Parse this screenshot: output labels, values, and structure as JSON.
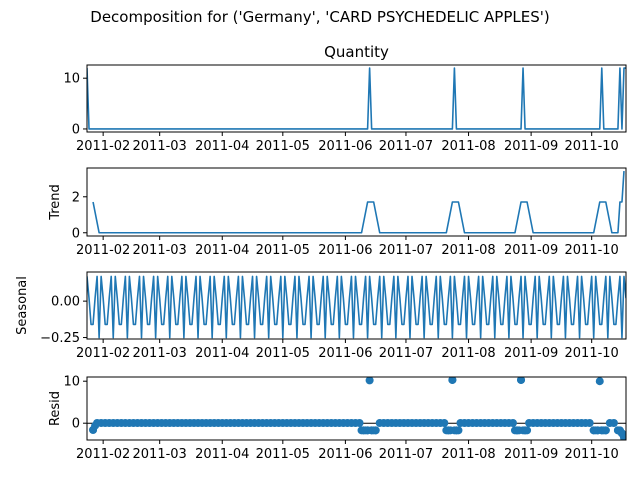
{
  "figure": {
    "suptitle": "Decomposition for ('Germany', 'CARD PSYCHEDELIC APPLES')"
  },
  "colors": {
    "series": "#1f77b4",
    "axis": "#000000",
    "background": "#ffffff"
  },
  "chart_data": [
    {
      "type": "line",
      "title": "Quantity",
      "ylabel": "",
      "ylim": [
        -0.6,
        12.6
      ],
      "yticks": [
        0,
        10
      ],
      "xlim": [
        "2011-01-24",
        "2011-10-18"
      ],
      "xticks": [
        "2011-02",
        "2011-03",
        "2011-04",
        "2011-05",
        "2011-06",
        "2011-07",
        "2011-08",
        "2011-09",
        "2011-10"
      ],
      "x": [
        "2011-01-24",
        "2011-01-25",
        "2011-06-12",
        "2011-06-13",
        "2011-06-14",
        "2011-07-24",
        "2011-07-25",
        "2011-07-26",
        "2011-08-27",
        "2011-08-28",
        "2011-08-29",
        "2011-10-05",
        "2011-10-06",
        "2011-10-07",
        "2011-10-14",
        "2011-10-15",
        "2011-10-16",
        "2011-10-17",
        "2011-10-18"
      ],
      "values": [
        12,
        0,
        0,
        12,
        0,
        0,
        12,
        0,
        0,
        12,
        0,
        0,
        12,
        0,
        0,
        12,
        0,
        12,
        12
      ]
    },
    {
      "type": "line",
      "title": "",
      "ylabel": "Trend",
      "ylim": [
        -0.18,
        3.6
      ],
      "yticks": [
        0,
        2
      ],
      "xlim": [
        "2011-01-24",
        "2011-10-18"
      ],
      "xticks": [
        "2011-02",
        "2011-03",
        "2011-04",
        "2011-05",
        "2011-06",
        "2011-07",
        "2011-08",
        "2011-09",
        "2011-10"
      ],
      "x": [
        "2011-01-27",
        "2011-01-30",
        "2011-06-09",
        "2011-06-12",
        "2011-06-15",
        "2011-06-18",
        "2011-07-21",
        "2011-07-24",
        "2011-07-27",
        "2011-07-30",
        "2011-08-24",
        "2011-08-27",
        "2011-08-30",
        "2011-09-02",
        "2011-10-02",
        "2011-10-05",
        "2011-10-08",
        "2011-10-11",
        "2011-10-14",
        "2011-10-15",
        "2011-10-16",
        "2011-10-17"
      ],
      "values": [
        1.71,
        0,
        0,
        1.71,
        1.71,
        0,
        0,
        1.71,
        1.71,
        0,
        0,
        1.71,
        1.71,
        0,
        0,
        1.71,
        1.71,
        0,
        0,
        1.71,
        1.71,
        3.43
      ]
    },
    {
      "type": "line",
      "title": "",
      "ylabel": "Seasonal",
      "ylim": [
        -0.26,
        0.2
      ],
      "yticks": [
        -0.25,
        0.0
      ],
      "yticklabels": [
        "−0.25",
        "0.00"
      ],
      "xlim": [
        "2011-01-24",
        "2011-10-18"
      ],
      "xticks": [
        "2011-02",
        "2011-03",
        "2011-04",
        "2011-05",
        "2011-06",
        "2011-07",
        "2011-08",
        "2011-09",
        "2011-10"
      ],
      "period_days": 7,
      "pattern": [
        0.17,
        0.02,
        -0.16,
        -0.16,
        0.02,
        0.17,
        -0.25
      ],
      "x_start": "2011-01-24",
      "x_end": "2011-10-18"
    },
    {
      "type": "scatter",
      "title": "",
      "ylabel": "Resid",
      "ylim": [
        -4.0,
        11.0
      ],
      "yticks": [
        0,
        10
      ],
      "baseline": 0,
      "xlim": [
        "2011-01-24",
        "2011-10-18"
      ],
      "xticks": [
        "2011-02",
        "2011-03",
        "2011-04",
        "2011-05",
        "2011-06",
        "2011-07",
        "2011-08",
        "2011-09",
        "2011-10"
      ],
      "default_value": 0.05,
      "x_start": "2011-01-27",
      "x_end": "2011-10-18",
      "special": [
        {
          "x": "2011-01-27",
          "y": -1.6
        },
        {
          "x": "2011-01-28",
          "y": -0.6
        },
        {
          "x": "2011-06-09",
          "y": -1.7
        },
        {
          "x": "2011-06-10",
          "y": -1.7
        },
        {
          "x": "2011-06-11",
          "y": -1.7
        },
        {
          "x": "2011-06-12",
          "y": -1.7
        },
        {
          "x": "2011-06-13",
          "y": 10.2
        },
        {
          "x": "2011-06-14",
          "y": -1.7
        },
        {
          "x": "2011-06-15",
          "y": -1.7
        },
        {
          "x": "2011-06-16",
          "y": -1.7
        },
        {
          "x": "2011-07-21",
          "y": -1.7
        },
        {
          "x": "2011-07-22",
          "y": -1.7
        },
        {
          "x": "2011-07-23",
          "y": -1.7
        },
        {
          "x": "2011-07-24",
          "y": 10.3
        },
        {
          "x": "2011-07-25",
          "y": -1.7
        },
        {
          "x": "2011-07-26",
          "y": -1.7
        },
        {
          "x": "2011-07-27",
          "y": -1.7
        },
        {
          "x": "2011-08-24",
          "y": -1.7
        },
        {
          "x": "2011-08-25",
          "y": -1.7
        },
        {
          "x": "2011-08-26",
          "y": -1.7
        },
        {
          "x": "2011-08-27",
          "y": 10.3
        },
        {
          "x": "2011-08-28",
          "y": -1.7
        },
        {
          "x": "2011-08-29",
          "y": -1.7
        },
        {
          "x": "2011-08-30",
          "y": -1.7
        },
        {
          "x": "2011-10-02",
          "y": -1.7
        },
        {
          "x": "2011-10-03",
          "y": -1.7
        },
        {
          "x": "2011-10-04",
          "y": -1.7
        },
        {
          "x": "2011-10-05",
          "y": 10.0
        },
        {
          "x": "2011-10-06",
          "y": -1.7
        },
        {
          "x": "2011-10-07",
          "y": -1.7
        },
        {
          "x": "2011-10-08",
          "y": -1.7
        },
        {
          "x": "2011-10-14",
          "y": -1.7
        },
        {
          "x": "2011-10-15",
          "y": -1.7
        },
        {
          "x": "2011-10-16",
          "y": -2.4
        },
        {
          "x": "2011-10-17",
          "y": -3.4
        },
        {
          "x": "2011-10-18",
          "y": -3.6
        }
      ]
    }
  ]
}
